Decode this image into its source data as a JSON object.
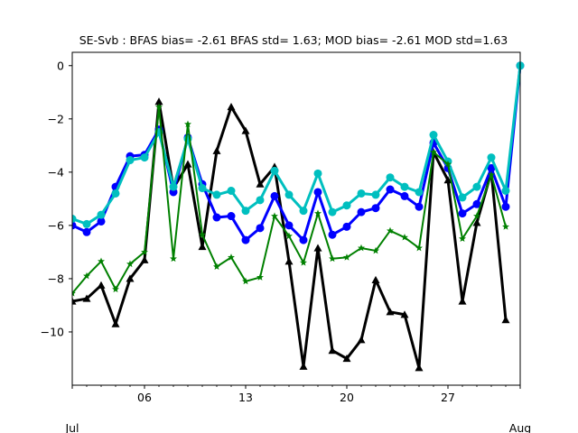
{
  "chart_data": {
    "type": "line",
    "title": "SE-Svb   : BFAS bias= -2.61 BFAS std= 1.63; MOD bias= -2.61 MOD std=1.63",
    "xlabel": "",
    "ylabel": "",
    "x_start": "2017-07-01",
    "x_end": "2017-08-01",
    "x": [
      "2017-07-01",
      "2017-07-02",
      "2017-07-03",
      "2017-07-04",
      "2017-07-05",
      "2017-07-06",
      "2017-07-07",
      "2017-07-08",
      "2017-07-09",
      "2017-07-10",
      "2017-07-11",
      "2017-07-12",
      "2017-07-13",
      "2017-07-14",
      "2017-07-15",
      "2017-07-16",
      "2017-07-17",
      "2017-07-18",
      "2017-07-19",
      "2017-07-20",
      "2017-07-21",
      "2017-07-22",
      "2017-07-23",
      "2017-07-24",
      "2017-07-25",
      "2017-07-26",
      "2017-07-27",
      "2017-07-28",
      "2017-07-29",
      "2017-07-30",
      "2017-07-31",
      "2017-08-01"
    ],
    "ylim": [
      -12.0,
      0.5
    ],
    "grid": false,
    "x_ticks": [
      {
        "date": "2017-07-06",
        "label": "06"
      },
      {
        "date": "2017-07-13",
        "label": "13"
      },
      {
        "date": "2017-07-20",
        "label": "20"
      },
      {
        "date": "2017-07-27",
        "label": "27"
      }
    ],
    "x_secondary_labels": [
      {
        "date": "2017-07-01",
        "label": "Jul"
      },
      {
        "date": "2017-08-01",
        "label": "Aug"
      }
    ],
    "y_ticks": [
      0,
      -2,
      -4,
      -6,
      -8,
      -10
    ],
    "y_tick_labels": [
      "0",
      "−2",
      "−4",
      "−6",
      "−8",
      "−10"
    ],
    "series": [
      {
        "color": "#000000",
        "marker": "triangle",
        "values": [
          -8.85,
          -8.75,
          -8.25,
          -9.7,
          -8.0,
          -7.3,
          -1.35,
          -4.6,
          -3.7,
          -6.8,
          -3.2,
          -1.55,
          -2.45,
          -4.45,
          -3.8,
          -7.35,
          -11.3,
          -6.85,
          -10.7,
          -11.0,
          -10.3,
          -8.05,
          -9.25,
          -9.35,
          -11.35,
          -3.25,
          -4.3,
          -8.85,
          -5.9,
          -4.0,
          -9.55,
          null
        ]
      },
      {
        "color": "#0000ff",
        "marker": "circle",
        "values": [
          -6.0,
          -6.25,
          -5.85,
          -4.55,
          -3.4,
          -3.35,
          -2.4,
          -4.75,
          -2.7,
          -4.45,
          -5.7,
          -5.65,
          -6.55,
          -6.1,
          -4.9,
          -6.0,
          -6.55,
          -4.75,
          -6.35,
          -6.05,
          -5.5,
          -5.35,
          -4.65,
          -4.9,
          -5.3,
          -2.9,
          -3.85,
          -5.55,
          -5.2,
          -3.85,
          -5.3,
          0.0
        ]
      },
      {
        "color": "#00bfbf",
        "marker": "circle",
        "values": [
          -5.75,
          -5.95,
          -5.6,
          -4.8,
          -3.55,
          -3.45,
          -2.5,
          -4.55,
          -2.75,
          -4.6,
          -4.85,
          -4.7,
          -5.45,
          -5.05,
          -3.95,
          -4.85,
          -5.45,
          -4.05,
          -5.5,
          -5.25,
          -4.8,
          -4.85,
          -4.2,
          -4.55,
          -4.75,
          -2.6,
          -3.6,
          -4.95,
          -4.55,
          -3.45,
          -4.7,
          0.0
        ]
      },
      {
        "color": "#008000",
        "marker": "star",
        "values": [
          -8.55,
          -7.9,
          -7.35,
          -8.4,
          -7.45,
          -7.0,
          -1.55,
          -7.25,
          -2.2,
          -6.35,
          -7.55,
          -7.2,
          -8.1,
          -7.95,
          -5.65,
          -6.4,
          -7.4,
          -5.55,
          -7.25,
          -7.2,
          -6.85,
          -6.95,
          -6.2,
          -6.45,
          -6.85,
          -3.25,
          -3.7,
          -6.5,
          -5.65,
          -4.1,
          -6.05,
          null
        ]
      }
    ]
  }
}
